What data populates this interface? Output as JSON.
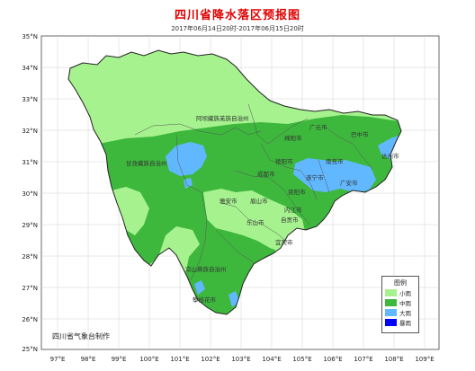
{
  "title": "四川省降水落区预报图",
  "subtitle": "2017年06月14日20时-2017年06月15日20时",
  "latitudes": [
    "35°N",
    "34°N",
    "33°N",
    "32°N",
    "31°N",
    "30°N",
    "29°N",
    "28°N",
    "27°N",
    "26°N",
    "25°N"
  ],
  "longitudes": [
    "97°E",
    "98°E",
    "99°E",
    "100°E",
    "101°E",
    "102°E",
    "103°E",
    "104°E",
    "105°E",
    "106°E",
    "107°E",
    "108°E",
    "109°E"
  ],
  "regions": {
    "aba": "阿坝藏族羌族自治州",
    "ganzi": "甘孜藏族自治州",
    "liangshan": "凉山彝族自治州"
  },
  "cities": {
    "guangyuan": "广元市",
    "bazhong": "巴中市",
    "mianyang": "绵阳市",
    "dazhou": "达州市",
    "deyang": "德阳市",
    "nanchong": "南充市",
    "chengdu": "成都市",
    "suining": "遂宁市",
    "guangan": "广安市",
    "ziyang": "资阳市",
    "yaan": "雅安市",
    "meishan": "眉山市",
    "neijiang": "内江市",
    "leshan": "乐山市",
    "zigong": "自贡市",
    "yibin": "宜宾市",
    "panzhihua": "攀枝花市"
  },
  "legend": {
    "title": "图例",
    "items": [
      {
        "label": "小雨",
        "color": "#a6f28f"
      },
      {
        "label": "中雨",
        "color": "#3db83d"
      },
      {
        "label": "大雨",
        "color": "#61b8ff"
      },
      {
        "label": "暴雨",
        "color": "#0000fe"
      }
    ]
  },
  "credit": "四川省气象台制作"
}
